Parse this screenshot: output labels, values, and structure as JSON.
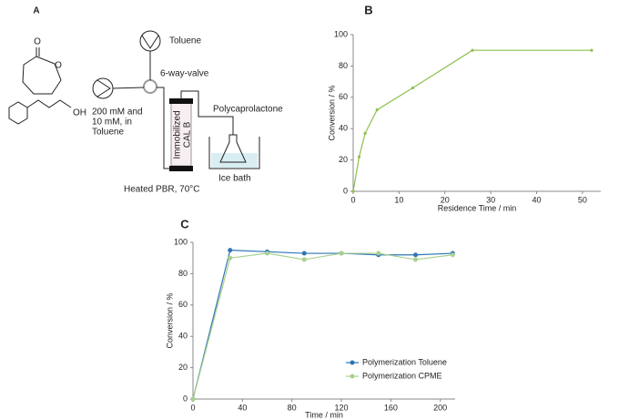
{
  "diagram": {
    "panel_label": "A",
    "carbonyl_o": "O",
    "ring_o": "O",
    "hydroxyl": "OH",
    "pump_solvent": "Toluene",
    "valve": "6-way-valve",
    "feed_lines": [
      "200 mM and",
      "10 mM, in",
      "Toluene"
    ],
    "column_lines": [
      "Immobilized",
      "CAL B"
    ],
    "product": "Polycaprolactone",
    "bath": "Ice bath",
    "reactor": "Heated PBR, 70°C"
  },
  "chart_data": [
    {
      "type": "line",
      "panel_label": "B",
      "x_label": "Residence Time / min",
      "y_label": "Conversion / %",
      "x": [
        0,
        1.3,
        2.6,
        5.2,
        13,
        26,
        52
      ],
      "values": [
        0,
        22,
        37,
        52,
        66,
        90,
        90
      ],
      "color": "#8dc04f",
      "xlim": [
        0,
        54
      ],
      "xticks": [
        0,
        10,
        20,
        30,
        40,
        50
      ],
      "ylim": [
        0,
        100
      ],
      "yticks": [
        0,
        20,
        40,
        60,
        80,
        100
      ]
    },
    {
      "type": "line",
      "panel_label": "C",
      "x_label": "Time / min",
      "y_label": "Conversion / %",
      "x": [
        0,
        30,
        60,
        90,
        120,
        150,
        180,
        210
      ],
      "series": [
        {
          "name": "Polymerization Toluene",
          "color": "#2e75b6",
          "values": [
            0,
            95,
            94,
            93,
            93,
            92,
            92,
            93
          ]
        },
        {
          "name": "Polymerization CPME",
          "color": "#a9d18e",
          "values": [
            0,
            90,
            93,
            89,
            93,
            93,
            89,
            92
          ]
        }
      ],
      "xlim": [
        0,
        212
      ],
      "xticks": [
        0,
        40,
        80,
        120,
        160,
        200
      ],
      "ylim": [
        0,
        100
      ],
      "yticks": [
        0,
        20,
        40,
        60,
        80,
        100
      ],
      "legend": "lower right"
    }
  ]
}
